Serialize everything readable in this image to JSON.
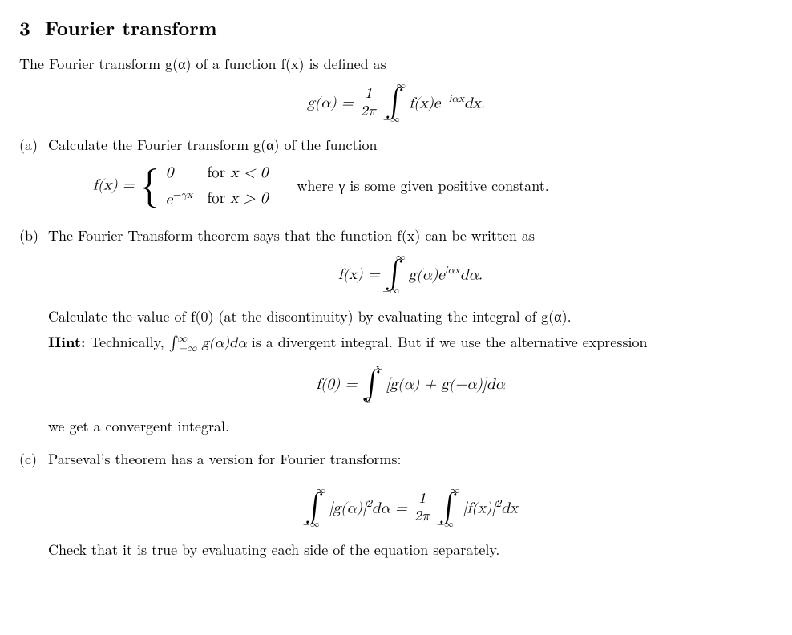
{
  "section": {
    "number": "3",
    "title": "Fourier transform"
  },
  "intro": "The Fourier transform g(α) of a function f(x) is defined as",
  "eq_def": {
    "lhs": "g(α) =",
    "frac_num": "1",
    "frac_den": "2π",
    "int_upper": "∞",
    "int_lower": "−∞",
    "integrand_a": "f(x)e",
    "integrand_exp": "−iαx",
    "integrand_b": "dx."
  },
  "part_a": {
    "label": "(a)",
    "text": "Calculate the Fourier transform g(α) of the function",
    "piecewise_lhs": "f(x) =",
    "piece1_val": "0",
    "piece1_cond_pre": "for ",
    "piece1_cond": "x < 0",
    "piece2_val_a": "e",
    "piece2_val_exp": "−γx",
    "piece2_cond_pre": "for ",
    "piece2_cond": "x > 0",
    "where": "where γ is some given positive constant."
  },
  "part_b": {
    "label": "(b)",
    "text": "The Fourier Transform theorem says that the function f(x) can be written as",
    "eq1": {
      "lhs": "f(x) =",
      "int_upper": "∞",
      "int_lower": "−∞",
      "integrand_a": "g(α)e",
      "integrand_exp": "iαx",
      "integrand_b": "dα."
    },
    "line2": "Calculate the value of f(0) (at the discontinuity) by evaluating the integral of g(α).",
    "hint_label": "Hint:",
    "hint_a": " Technically, ",
    "hint_int_upper": "∞",
    "hint_int_lower": "−∞",
    "hint_int_body": "g(α)dα",
    "hint_b": " is a divergent integral. But if we use the alternative expression",
    "eq2": {
      "lhs": "f(0) =",
      "int_upper": "∞",
      "int_lower": "0",
      "body": "[g(α) + g(−α)]dα"
    },
    "tail": "we get a convergent integral."
  },
  "part_c": {
    "label": "(c)",
    "text": "Parseval’s theorem has a version for Fourier transforms:",
    "eq": {
      "l_int_upper": "∞",
      "l_int_lower": "−∞",
      "l_body_a": "|g(α)|",
      "l_body_exp": "2",
      "l_body_b": "dα =",
      "frac_num": "1",
      "frac_den": "2π",
      "r_int_upper": "∞",
      "r_int_lower": "−∞",
      "r_body_a": "|f(x)|",
      "r_body_exp": "2",
      "r_body_b": "dx"
    },
    "tail": "Check that it is true by evaluating each side of the equation separately."
  }
}
